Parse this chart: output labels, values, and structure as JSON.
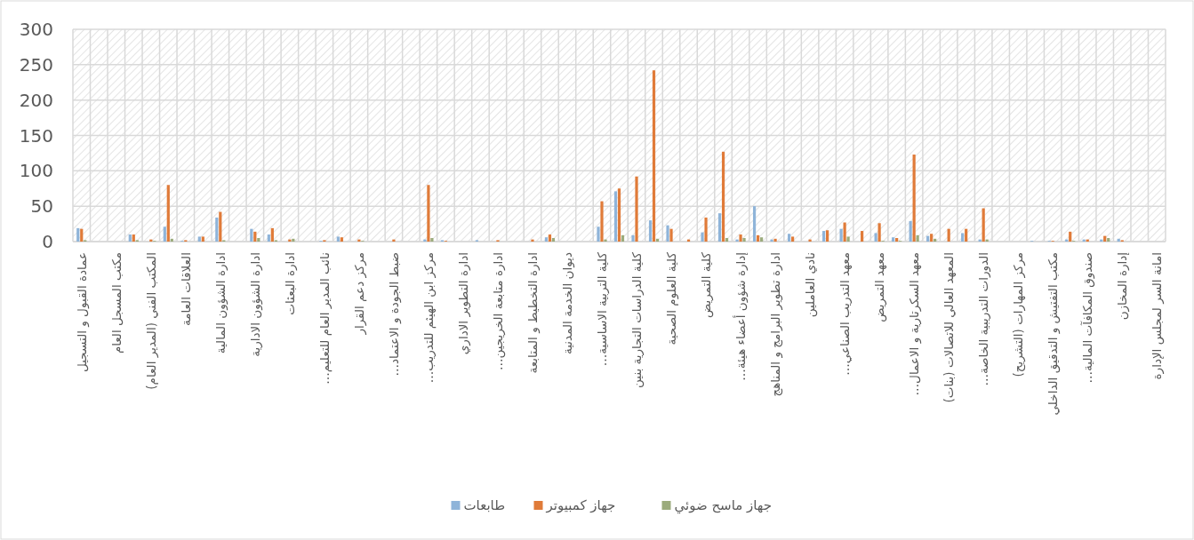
{
  "chart_data": {
    "type": "bar",
    "categories": [
      "عمادة القبول و التسجيل",
      null,
      "مكتب المسجل العام",
      null,
      "المكتب الفني (المدير العام)",
      null,
      "العلاقات العامة",
      null,
      "ادارة الشؤون المالية",
      null,
      "ادارة الشؤون الادارية",
      null,
      "ادارة البعثات",
      null,
      "نائب المدير العام للتعليم…",
      null,
      "مركز دعم القرار",
      null,
      "ضبط الجودة و الاعتماد…",
      null,
      "مركز ابن الهيثم للتدريب…",
      null,
      "ادارة التطوير الاداري",
      null,
      "ادارة متابعة الخريجين…",
      null,
      "ادارة التخطيط و المتابعة",
      null,
      "ديوان الخدمة المدنية",
      null,
      "كلية التربية الاساسية…",
      null,
      "كلية الدراسات التجارية بنين",
      null,
      "كلية العلوم الصحية",
      null,
      "كلية التمريض",
      null,
      "إدارة شؤون أعضاء هيئة…",
      null,
      "ادارة تطوير البرامج و المناهج",
      null,
      "نادي العاملين",
      null,
      "معهد التدريب الصناعي…",
      null,
      "معهد التمريض",
      null,
      "معهد السكرتارية و الاعمال…",
      null,
      "المعهد العالي للاتصالات (بنات)",
      null,
      "الدورات التدريبية الخاصة…",
      null,
      "مركز المهارات (التشريح)",
      null,
      "مكتب التفتيش و التدقيق الداخلي",
      null,
      "صندوق المكافآت المالية…",
      null,
      "إدارة المخازن",
      null,
      "امانة السر لمجلس الإدارة"
    ],
    "series": [
      {
        "name": "طابعات",
        "color": "#8fb4d9",
        "values": [
          19,
          0,
          0,
          10,
          0,
          21,
          1,
          7,
          34,
          0,
          18,
          10,
          0,
          0,
          1,
          7,
          0,
          0,
          0,
          0,
          3,
          2,
          0,
          2,
          0,
          0,
          0,
          6,
          0,
          0,
          21,
          71,
          9,
          30,
          23,
          0,
          13,
          40,
          3,
          50,
          3,
          11,
          0,
          15,
          18,
          0,
          12,
          6,
          29,
          8,
          0,
          12,
          3,
          0,
          0,
          1,
          1,
          3,
          3,
          3,
          4,
          0,
          0
        ]
      },
      {
        "name": "جهاز كمبيوتر",
        "color": "#e07b39",
        "values": [
          18,
          0,
          0,
          10,
          3,
          80,
          2,
          7,
          42,
          0,
          14,
          19,
          3,
          0,
          2,
          6,
          3,
          0,
          3,
          0,
          80,
          1,
          0,
          0,
          2,
          0,
          3,
          10,
          0,
          0,
          57,
          75,
          92,
          242,
          18,
          3,
          34,
          127,
          10,
          9,
          4,
          7,
          3,
          16,
          27,
          15,
          26,
          5,
          123,
          11,
          18,
          18,
          47,
          0,
          0,
          0,
          1,
          14,
          3,
          8,
          2,
          0,
          0
        ]
      },
      {
        "name": "جهاز ماسح ضوئي",
        "color": "#9bab7c",
        "values": [
          2,
          0,
          0,
          2,
          1,
          4,
          0,
          0,
          2,
          0,
          5,
          2,
          4,
          0,
          0,
          0,
          1,
          0,
          0,
          0,
          5,
          0,
          0,
          0,
          0,
          0,
          0,
          5,
          0,
          0,
          3,
          9,
          0,
          4,
          0,
          0,
          0,
          5,
          5,
          6,
          0,
          0,
          0,
          0,
          7,
          0,
          1,
          1,
          9,
          4,
          0,
          0,
          3,
          0,
          0,
          0,
          0,
          1,
          0,
          5,
          0,
          0,
          0
        ]
      }
    ],
    "ylim": [
      0,
      300
    ],
    "yticks": [
      0,
      50,
      100,
      150,
      200,
      250,
      300
    ],
    "grid": true,
    "legend": "bottom"
  }
}
